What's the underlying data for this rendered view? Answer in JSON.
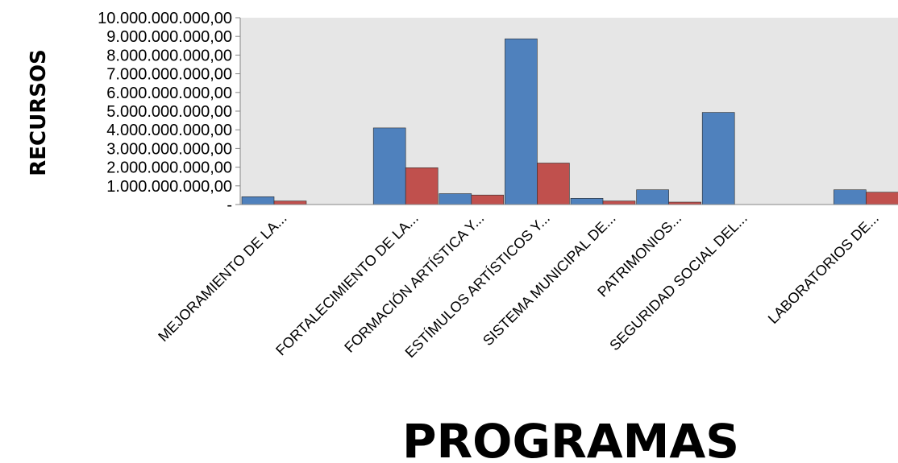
{
  "chart_data": {
    "type": "bar",
    "title": "",
    "xlabel": "PROGRAMAS",
    "ylabel": "RECURSOS",
    "ylim": [
      0,
      10000000000
    ],
    "yticks": [
      {
        "value": 0,
        "label": "-"
      },
      {
        "value": 1000000000,
        "label": "1.000.000.000,00"
      },
      {
        "value": 2000000000,
        "label": "2.000.000.000,00"
      },
      {
        "value": 3000000000,
        "label": "3.000.000.000,00"
      },
      {
        "value": 4000000000,
        "label": "4.000.000.000,00"
      },
      {
        "value": 5000000000,
        "label": "5.000.000.000,00"
      },
      {
        "value": 6000000000,
        "label": "6.000.000.000,00"
      },
      {
        "value": 7000000000,
        "label": "7.000.000.000,00"
      },
      {
        "value": 8000000000,
        "label": "8.000.000.000,00"
      },
      {
        "value": 9000000000,
        "label": "9.000.000.000,00"
      },
      {
        "value": 10000000000,
        "label": "10.000.000.000,00"
      }
    ],
    "categories": [
      "MEJORAMIENTO DE LA...",
      "",
      "FORTALECIMIENTO DE LA...",
      "FORMACIÓN ARTÍSTICA Y...",
      "ESTÍMULOS ARTÍSTICOS Y...",
      "SISTEMA MUNICIPAL DE...",
      "PATRIMONIOS...",
      "SEGURIDAD SOCIAL DEL...",
      "",
      "LABORATORIOS DE..."
    ],
    "series": [
      {
        "color": "#4f81bd",
        "values": [
          420000000,
          0,
          4100000000,
          580000000,
          8870000000,
          330000000,
          790000000,
          4930000000,
          0,
          790000000
        ]
      },
      {
        "color": "#c0504d",
        "values": [
          190000000,
          0,
          1970000000,
          510000000,
          2220000000,
          190000000,
          130000000,
          0,
          0,
          660000000
        ]
      }
    ],
    "grid": false,
    "background": "#e6e6e6"
  }
}
